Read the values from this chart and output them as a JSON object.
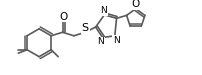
{
  "bg_color": "white",
  "line_color": "#5a5a5a",
  "line_width": 1.2,
  "font_size": 6.5,
  "figsize": [
    2.02,
    0.75
  ],
  "dpi": 100,
  "xlim": [
    0,
    202
  ],
  "ylim": [
    0,
    75
  ]
}
